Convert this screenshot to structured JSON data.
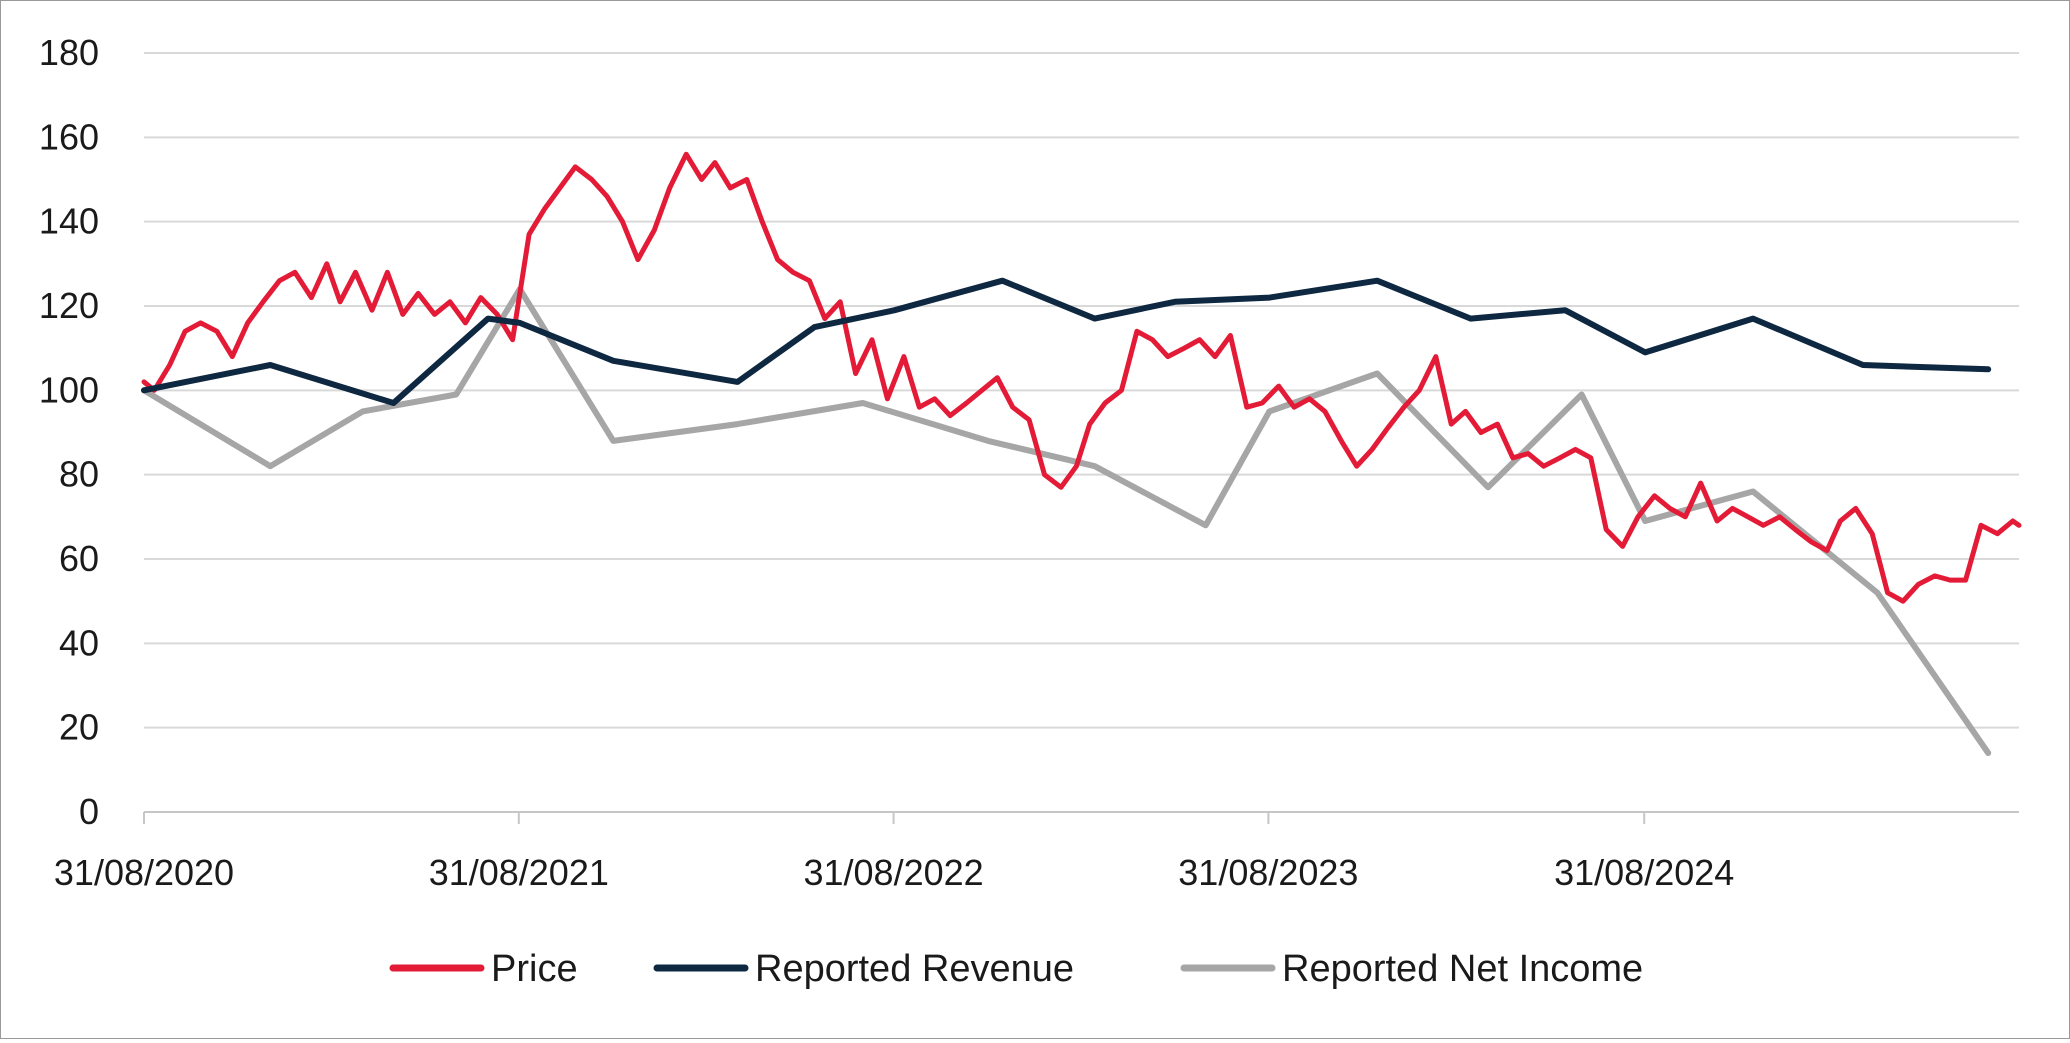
{
  "chart_data": {
    "type": "line",
    "title": "",
    "xlabel": "",
    "ylabel": "",
    "ylim": [
      0,
      180
    ],
    "yticks": [
      0,
      20,
      40,
      60,
      80,
      100,
      120,
      140,
      160,
      180
    ],
    "xlim": [
      "2020-08-31",
      "2025-08-31"
    ],
    "xtick_labels": [
      "31/08/2020",
      "31/08/2021",
      "31/08/2022",
      "31/08/2023",
      "31/08/2024"
    ],
    "xtick_dates": [
      "2020-08-31",
      "2021-08-31",
      "2022-08-31",
      "2023-08-31",
      "2024-08-31"
    ],
    "grid": "horizontal",
    "legend_position": "bottom",
    "series": [
      {
        "name": "Price",
        "color": "#e31b37",
        "x": [
          "2020-08-31",
          "2020-09-10",
          "2020-09-25",
          "2020-10-10",
          "2020-10-25",
          "2020-11-10",
          "2020-11-25",
          "2020-12-10",
          "2020-12-25",
          "2021-01-10",
          "2021-01-25",
          "2021-02-10",
          "2021-02-25",
          "2021-03-10",
          "2021-03-25",
          "2021-04-10",
          "2021-04-25",
          "2021-05-10",
          "2021-05-25",
          "2021-06-10",
          "2021-06-25",
          "2021-07-10",
          "2021-07-25",
          "2021-08-10",
          "2021-08-25",
          "2021-09-10",
          "2021-09-25",
          "2021-10-10",
          "2021-10-25",
          "2021-11-10",
          "2021-11-25",
          "2021-12-10",
          "2021-12-25",
          "2022-01-10",
          "2022-01-25",
          "2022-02-10",
          "2022-02-25",
          "2022-03-10",
          "2022-03-25",
          "2022-04-10",
          "2022-04-25",
          "2022-05-10",
          "2022-05-25",
          "2022-06-10",
          "2022-06-25",
          "2022-07-10",
          "2022-07-25",
          "2022-08-10",
          "2022-08-25",
          "2022-09-10",
          "2022-09-25",
          "2022-10-10",
          "2022-10-25",
          "2022-11-10",
          "2022-11-25",
          "2022-12-10",
          "2022-12-25",
          "2023-01-10",
          "2023-01-25",
          "2023-02-10",
          "2023-02-25",
          "2023-03-10",
          "2023-03-25",
          "2023-04-10",
          "2023-04-25",
          "2023-05-10",
          "2023-05-25",
          "2023-06-10",
          "2023-06-25",
          "2023-07-10",
          "2023-07-25",
          "2023-08-10",
          "2023-08-25",
          "2023-09-10",
          "2023-09-25",
          "2023-10-10",
          "2023-10-25",
          "2023-11-10",
          "2023-11-25",
          "2023-12-10",
          "2023-12-25",
          "2024-01-10",
          "2024-01-25",
          "2024-02-10",
          "2024-02-25",
          "2024-03-10",
          "2024-03-25",
          "2024-04-10",
          "2024-04-25",
          "2024-05-10",
          "2024-05-25",
          "2024-06-10",
          "2024-06-25",
          "2024-07-10",
          "2024-07-25",
          "2024-08-10",
          "2024-08-25",
          "2024-09-10",
          "2024-09-25",
          "2024-10-10",
          "2024-10-25",
          "2024-11-10",
          "2024-11-25",
          "2024-12-10",
          "2024-12-25",
          "2025-01-10",
          "2025-01-25",
          "2025-02-10",
          "2025-02-25",
          "2025-03-10",
          "2025-03-25",
          "2025-04-10",
          "2025-04-25",
          "2025-05-10",
          "2025-05-25",
          "2025-06-10",
          "2025-06-25",
          "2025-07-10",
          "2025-07-25",
          "2025-08-10",
          "2025-08-25",
          "2025-08-31"
        ],
        "values": [
          102,
          100,
          106,
          114,
          116,
          114,
          108,
          116,
          121,
          126,
          128,
          122,
          130,
          121,
          128,
          119,
          128,
          118,
          123,
          118,
          121,
          116,
          122,
          118,
          112,
          137,
          143,
          148,
          153,
          150,
          146,
          140,
          131,
          138,
          148,
          156,
          150,
          154,
          148,
          150,
          140,
          131,
          128,
          126,
          117,
          121,
          104,
          112,
          98,
          108,
          96,
          98,
          94,
          97,
          100,
          103,
          96,
          93,
          80,
          77,
          82,
          92,
          97,
          100,
          114,
          112,
          108,
          110,
          112,
          108,
          113,
          96,
          97,
          101,
          96,
          98,
          95,
          88,
          82,
          86,
          91,
          96,
          100,
          108,
          92,
          95,
          90,
          92,
          84,
          85,
          82,
          84,
          86,
          84,
          67,
          63,
          70,
          75,
          72,
          70,
          78,
          69,
          72,
          70,
          68,
          70,
          67,
          64,
          62,
          69,
          72,
          66,
          52,
          50,
          54,
          56,
          55,
          55,
          68,
          66,
          69,
          68
        ],
        "stroke_width": 5
      },
      {
        "name": "Reported Revenue",
        "color": "#0e2841",
        "x": [
          "2020-08-31",
          "2021-01-01",
          "2021-05-01",
          "2021-08-01",
          "2021-09-01",
          "2021-12-01",
          "2022-04-01",
          "2022-06-15",
          "2022-09-01",
          "2022-12-15",
          "2023-03-15",
          "2023-06-01",
          "2023-09-01",
          "2023-12-15",
          "2024-03-15",
          "2024-06-15",
          "2024-09-01",
          "2024-12-15",
          "2025-04-01",
          "2025-08-01"
        ],
        "values": [
          100,
          106,
          97,
          117,
          116,
          107,
          102,
          115,
          119,
          126,
          117,
          121,
          122,
          126,
          117,
          119,
          109,
          117,
          106,
          105
        ],
        "stroke_width": 6
      },
      {
        "name": "Reported Net Income",
        "color": "#a6a6a6",
        "x": [
          "2020-08-31",
          "2021-01-01",
          "2021-04-01",
          "2021-07-01",
          "2021-09-01",
          "2021-12-01",
          "2022-04-01",
          "2022-08-01",
          "2022-12-01",
          "2023-03-15",
          "2023-07-01",
          "2023-09-01",
          "2023-12-15",
          "2024-04-01",
          "2024-07-01",
          "2024-09-01",
          "2024-12-15",
          "2025-04-15",
          "2025-08-01"
        ],
        "values": [
          100,
          82,
          95,
          99,
          124,
          88,
          92,
          97,
          88,
          82,
          68,
          95,
          104,
          77,
          99,
          69,
          76,
          52,
          14
        ],
        "stroke_width": 6
      }
    ]
  }
}
